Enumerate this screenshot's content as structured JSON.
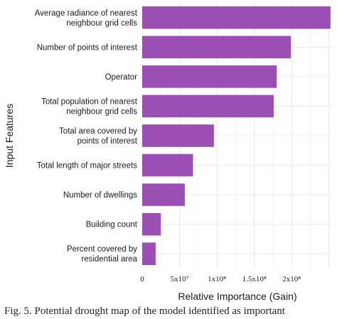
{
  "chart_data": {
    "type": "bar",
    "orientation": "horizontal",
    "categories": [
      "Average radiance of nearest\nneighbour grid cells",
      "Number of points of interest",
      "Operator",
      "Total population of nearest\nneighbour grid cells",
      "Total area covered by\npoints of interest",
      "Total length of major streets",
      "Number of dwellings",
      "Building count",
      "Percent covered by\nresidential area"
    ],
    "values": [
      252000000,
      199000000,
      180000000,
      176000000,
      96000000,
      68000000,
      57000000,
      25000000,
      18000000
    ],
    "xlim": [
      0,
      255000000
    ],
    "xticks": [
      0,
      50000000,
      100000000,
      150000000,
      200000000
    ],
    "xtick_labels": [
      "0",
      "5x10⁷",
      "1x10⁸",
      "1.5x10⁸",
      "2x10⁸"
    ],
    "xlabel": "Relative Importance (Gain)",
    "ylabel": "Input Features",
    "title": "",
    "grid": true,
    "bar_color": "#9b4fb5"
  },
  "caption": "Fig. 5.  Potential drought map of the model identified as important"
}
